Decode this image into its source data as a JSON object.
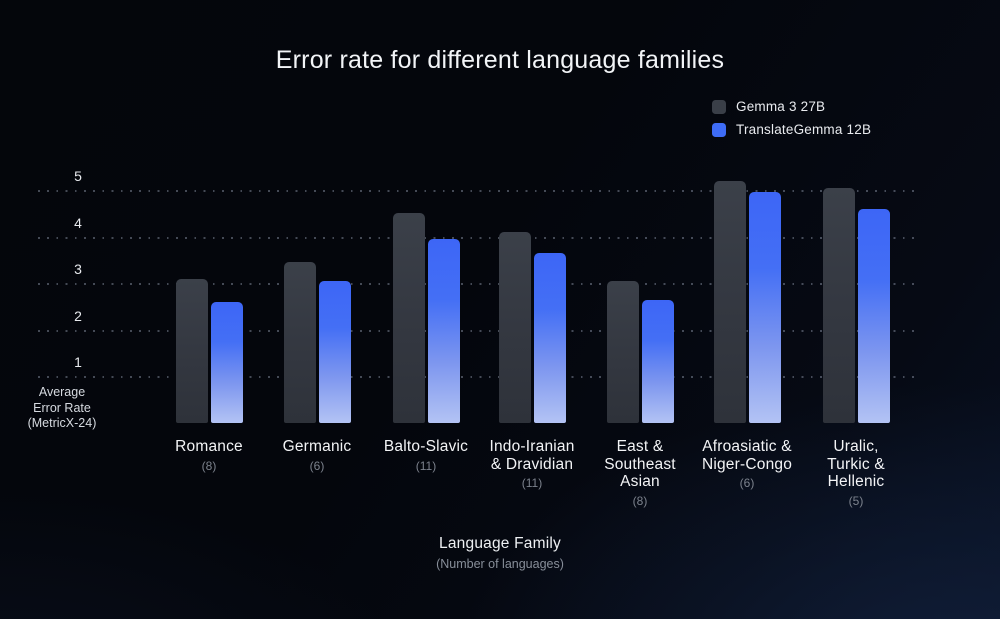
{
  "chart_data": {
    "type": "bar",
    "title": "Error rate for different language families",
    "xlabel": "Language Family",
    "xlabel_sub": "(Number of languages)",
    "ylabel_lines": [
      "Average",
      "Error Rate",
      "(MetricX-24)"
    ],
    "yticks": [
      1,
      2,
      3,
      4,
      5
    ],
    "ylim": [
      0,
      5.4
    ],
    "grid": "horizontal-dotted",
    "legend_position": "top-right",
    "categories": [
      {
        "lines": [
          "Romance"
        ],
        "count": "(8)"
      },
      {
        "lines": [
          "Germanic"
        ],
        "count": "(6)"
      },
      {
        "lines": [
          "Balto-Slavic"
        ],
        "count": "(11)"
      },
      {
        "lines": [
          "Indo-Iranian",
          "& Dravidian"
        ],
        "count": "(11)"
      },
      {
        "lines": [
          "East &",
          "Southeast",
          "Asian"
        ],
        "count": "(8)"
      },
      {
        "lines": [
          "Afroasiatic &",
          "Niger-Congo"
        ],
        "count": "(6)"
      },
      {
        "lines": [
          "Uralic,",
          "Turkic &",
          "Hellenic"
        ],
        "count": "(5)"
      }
    ],
    "series": [
      {
        "name": "Gemma 3 27B",
        "values": [
          3.1,
          3.45,
          4.5,
          4.1,
          3.05,
          5.2,
          5.05
        ],
        "gradient": [
          "#3b4049",
          "#343841",
          "#2e323a"
        ],
        "legend_color": "#3a3f48"
      },
      {
        "name": "TranslateGemma 12B",
        "values": [
          2.6,
          3.05,
          3.95,
          3.65,
          2.65,
          4.95,
          4.6
        ],
        "gradient": [
          "#3d66f6",
          "#446ff5",
          "#7d96ef",
          "#b3c3f4"
        ],
        "legend_color": "#3e6cf6"
      }
    ]
  }
}
